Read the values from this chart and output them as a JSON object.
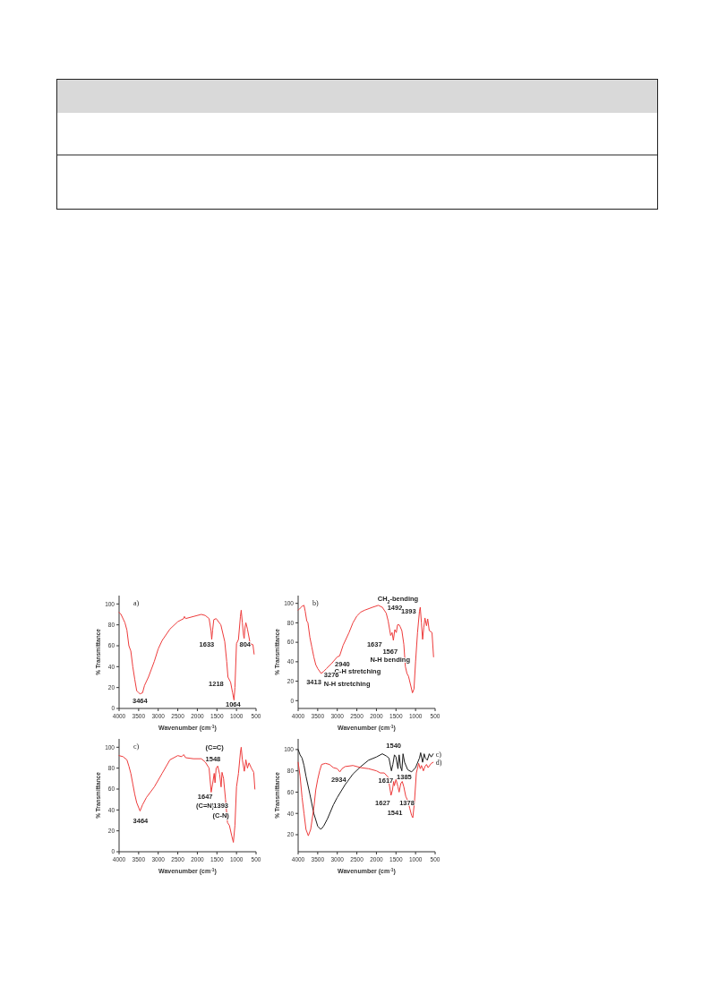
{
  "chart_data": [
    {
      "type": "line",
      "title": "a)",
      "xlabel": "Wavenumber (cm$^{-1}$)",
      "ylabel": "% Transmittance",
      "xlim": [
        4000,
        500
      ],
      "xticks": [
        4000,
        3500,
        3000,
        2500,
        2000,
        1500,
        1000,
        500
      ],
      "ylim": [
        0,
        108
      ],
      "yticks": [
        0,
        20,
        40,
        60,
        80,
        100
      ],
      "series": [
        {
          "color": "#ee3b3b",
          "x": [
            4000,
            3950,
            3850,
            3800,
            3750,
            3700,
            3650,
            3600,
            3550,
            3500,
            3464,
            3400,
            3350,
            3250,
            3100,
            3000,
            2900,
            2700,
            2500,
            2400,
            2350,
            2330,
            2300,
            2100,
            1900,
            1800,
            1700,
            1650,
            1633,
            1610,
            1580,
            1520,
            1400,
            1300,
            1250,
            1218,
            1150,
            1100,
            1064,
            1040,
            1000,
            950,
            900,
            880,
            850,
            820,
            804,
            780,
            760,
            720,
            650,
            580,
            550
          ],
          "values": [
            92,
            90,
            82,
            75,
            60,
            55,
            40,
            28,
            17,
            15,
            14,
            15,
            22,
            30,
            45,
            57,
            65,
            76,
            83,
            85,
            86,
            88,
            86,
            88,
            90,
            89,
            86,
            74,
            66,
            75,
            85,
            86,
            80,
            64,
            45,
            30,
            25,
            15,
            8,
            20,
            62,
            66,
            88,
            94,
            82,
            70,
            67,
            78,
            82,
            76,
            62,
            61,
            52
          ]
        }
      ],
      "annotations": [
        "3464",
        "1633",
        "804",
        "1218",
        "1064"
      ]
    },
    {
      "type": "line",
      "title": "b)",
      "xlabel": "Wavenumber (cm$^{-1}$)",
      "ylabel": "% Transmittance",
      "xlim": [
        4000,
        500
      ],
      "xticks": [
        4000,
        3500,
        3000,
        2500,
        2000,
        1500,
        1000,
        500
      ],
      "ylim": [
        -8,
        108
      ],
      "yticks": [
        0,
        20,
        40,
        60,
        80,
        100
      ],
      "series": [
        {
          "color": "#ee3b3b",
          "x": [
            4000,
            3950,
            3900,
            3850,
            3820,
            3780,
            3750,
            3700,
            3650,
            3600,
            3550,
            3500,
            3413,
            3350,
            3276,
            3150,
            3000,
            2940,
            2850,
            2700,
            2600,
            2500,
            2400,
            2300,
            2100,
            1950,
            1850,
            1750,
            1700,
            1637,
            1600,
            1567,
            1530,
            1492,
            1460,
            1420,
            1393,
            1350,
            1300,
            1260,
            1220,
            1180,
            1120,
            1080,
            1040,
            1000,
            950,
            900,
            880,
            850,
            820,
            790,
            760,
            720,
            690,
            650,
            580,
            540
          ],
          "values": [
            93,
            95,
            97,
            98,
            92,
            82,
            80,
            65,
            55,
            45,
            37,
            33,
            28,
            30,
            33,
            38,
            45,
            46,
            57,
            70,
            80,
            87,
            91,
            93,
            96,
            98,
            96,
            90,
            82,
            67,
            70,
            62,
            73,
            70,
            78,
            78,
            76,
            72,
            58,
            35,
            28,
            25,
            15,
            8,
            12,
            40,
            70,
            92,
            96,
            80,
            63,
            75,
            85,
            77,
            84,
            72,
            70,
            45
          ]
        }
      ],
      "annotations": [
        "CH$_{2}$-bending",
        "1492",
        "1393",
        "1637",
        "1567",
        "N-H bending",
        "2940",
        "C-H stretching",
        "3413",
        "3276",
        "N-H stretching"
      ]
    },
    {
      "type": "line",
      "title": "c)",
      "xlabel": "Wavenumber (cm$^{-1}$)",
      "ylabel": "% Transmittance",
      "xlim": [
        4000,
        500
      ],
      "xticks": [
        4000,
        3500,
        3000,
        2500,
        2000,
        1500,
        1000,
        500
      ],
      "ylim": [
        0,
        108
      ],
      "yticks": [
        0,
        20,
        40,
        60,
        80,
        100
      ],
      "series": [
        {
          "color": "#ee3b3b",
          "x": [
            4000,
            3900,
            3800,
            3750,
            3700,
            3650,
            3600,
            3550,
            3464,
            3400,
            3300,
            3100,
            2900,
            2700,
            2500,
            2400,
            2350,
            2300,
            2100,
            1900,
            1800,
            1700,
            1647,
            1610,
            1570,
            1548,
            1520,
            1480,
            1430,
            1393,
            1370,
            1330,
            1280,
            1230,
            1180,
            1120,
            1080,
            1040,
            1000,
            950,
            900,
            880,
            850,
            800,
            760,
            720,
            680,
            620,
            560,
            530
          ],
          "values": [
            92,
            91,
            88,
            82,
            75,
            65,
            55,
            47,
            39,
            45,
            52,
            62,
            75,
            88,
            92,
            91,
            93,
            90,
            89,
            89,
            86,
            80,
            57,
            65,
            75,
            66,
            80,
            82,
            74,
            62,
            76,
            70,
            50,
            28,
            25,
            15,
            9,
            25,
            62,
            75,
            95,
            100,
            88,
            77,
            88,
            80,
            85,
            80,
            76,
            60
          ]
        }
      ],
      "annotations": [
        "(C=C)",
        "1548",
        "1647",
        "(C=N)",
        "1393",
        "(C-N)",
        "3464"
      ]
    },
    {
      "type": "line",
      "xlabel": "Wavenumber (cm$^{-1}$)",
      "ylabel": "% Transmittance",
      "xlim": [
        4000,
        500
      ],
      "xticks": [
        4000,
        3500,
        3000,
        2500,
        2000,
        1500,
        1000,
        500
      ],
      "ylim": [
        4,
        110
      ],
      "yticks": [
        20,
        40,
        60,
        80,
        100
      ],
      "series": [
        {
          "name": "c)",
          "color": "#1a1a1a",
          "x": [
            4000,
            3950,
            3900,
            3850,
            3800,
            3700,
            3600,
            3500,
            3420,
            3350,
            3250,
            3100,
            3000,
            2800,
            2600,
            2400,
            2200,
            2000,
            1850,
            1750,
            1680,
            1617,
            1580,
            1540,
            1500,
            1450,
            1420,
            1385,
            1350,
            1320,
            1280,
            1200,
            1100,
            1000,
            900,
            870,
            820,
            780,
            750,
            700,
            650,
            600,
            550
          ],
          "values": [
            100,
            95,
            92,
            85,
            75,
            58,
            40,
            28,
            25,
            28,
            35,
            48,
            55,
            67,
            77,
            84,
            90,
            93,
            96,
            94,
            92,
            80,
            86,
            95,
            93,
            82,
            95,
            84,
            80,
            96,
            88,
            81,
            79,
            83,
            92,
            97,
            88,
            96,
            92,
            90,
            96,
            93,
            96
          ]
        },
        {
          "name": "d)",
          "color": "#ee3b3b",
          "x": [
            4000,
            3950,
            3900,
            3850,
            3800,
            3740,
            3680,
            3600,
            3550,
            3500,
            3450,
            3400,
            3300,
            3200,
            3100,
            3000,
            2934,
            2880,
            2800,
            2600,
            2400,
            2200,
            2000,
            1900,
            1800,
            1700,
            1627,
            1590,
            1560,
            1541,
            1500,
            1450,
            1420,
            1378,
            1340,
            1300,
            1250,
            1200,
            1150,
            1100,
            1070,
            1030,
            980,
            920,
            880,
            850,
            800,
            760,
            720,
            680,
            600,
            550
          ],
          "values": [
            88,
            75,
            55,
            40,
            25,
            19,
            25,
            45,
            62,
            72,
            80,
            86,
            87,
            86,
            83,
            82,
            79,
            82,
            84,
            85,
            83,
            82,
            80,
            78,
            78,
            74,
            57,
            62,
            70,
            66,
            72,
            65,
            60,
            68,
            70,
            65,
            56,
            52,
            45,
            38,
            36,
            50,
            78,
            87,
            82,
            85,
            80,
            84,
            86,
            83,
            87,
            88
          ]
        }
      ],
      "annotations": [
        "2934",
        "1540",
        "1617",
        "1385",
        "1627",
        "1378",
        "1541"
      ]
    }
  ]
}
